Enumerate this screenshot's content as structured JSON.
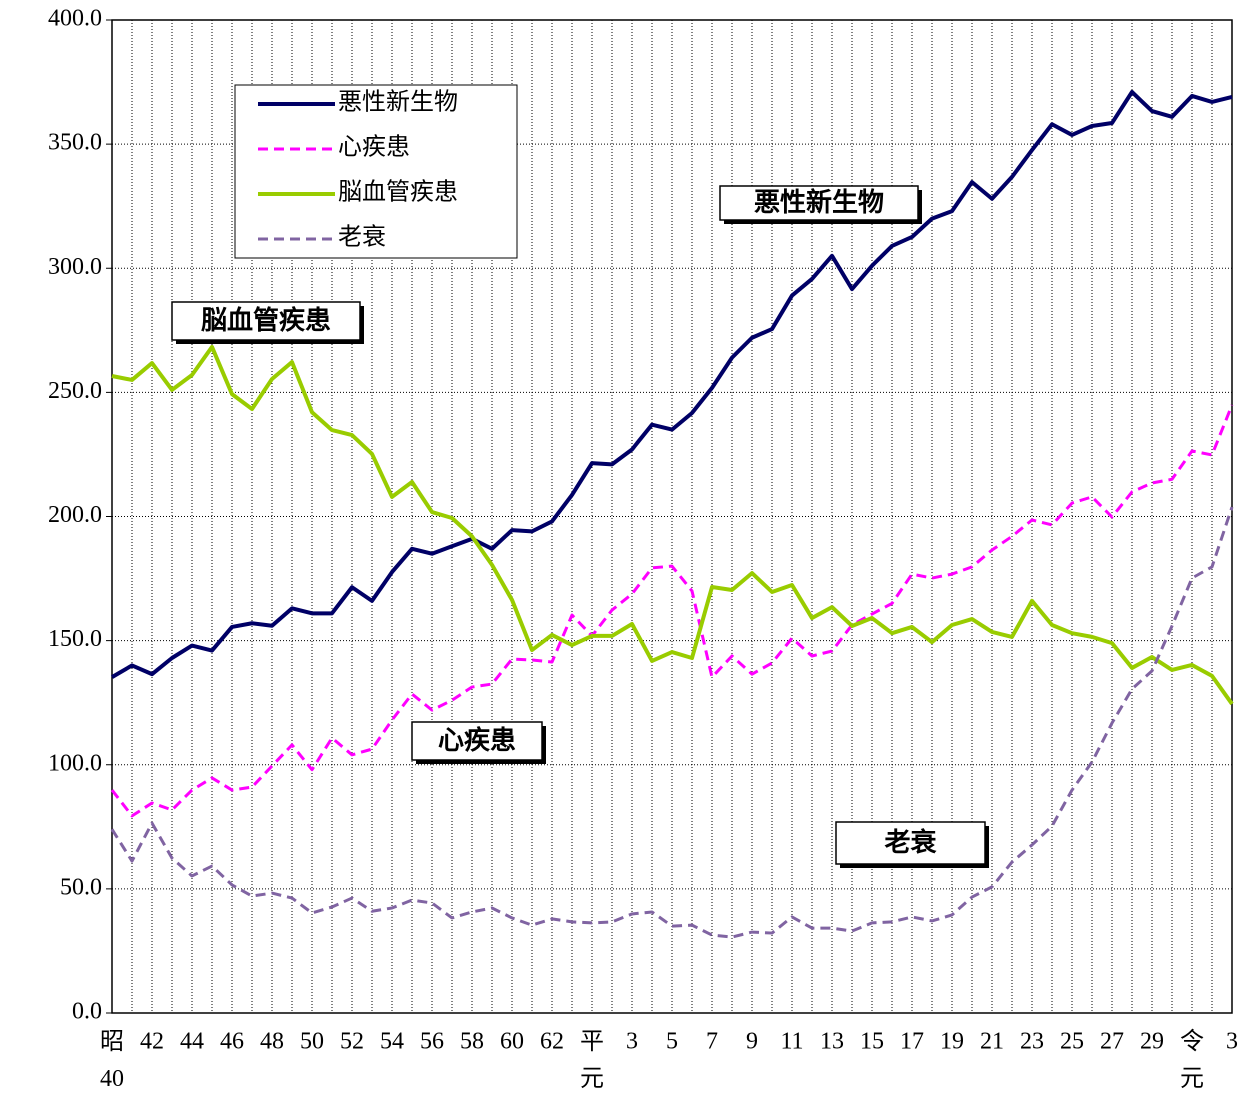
{
  "chart_data": {
    "type": "line",
    "categories": [
      "昭40",
      null,
      "42",
      null,
      "44",
      null,
      "46",
      null,
      "48",
      null,
      "50",
      null,
      "52",
      null,
      "54",
      null,
      "56",
      null,
      "58",
      null,
      "60",
      null,
      "62",
      null,
      "平元",
      null,
      "3",
      null,
      "5",
      null,
      "7",
      null,
      "9",
      null,
      "11",
      null,
      "13",
      null,
      "15",
      null,
      "17",
      null,
      "19",
      null,
      "21",
      null,
      "23",
      null,
      "25",
      null,
      "27",
      null,
      "29",
      null,
      "令元",
      null,
      "3"
    ],
    "series": [
      {
        "name": "悪性新生物",
        "color": "#000066",
        "dash": false,
        "values": [
          135.3,
          140,
          136.5,
          143,
          148,
          146,
          155.5,
          157,
          156,
          163,
          161,
          161,
          171.5,
          166,
          177.6,
          187,
          185,
          188,
          191,
          187,
          194.5,
          194,
          198,
          208.7,
          221.5,
          221,
          227,
          237,
          235,
          241.7,
          251.8,
          264,
          272,
          275.5,
          289,
          295.7,
          305,
          291.6,
          301,
          309,
          312.6,
          320,
          323,
          334.7,
          328,
          336.8,
          347.6,
          358,
          353.7,
          357.3,
          358.5,
          371,
          363.3,
          361,
          369.4,
          367,
          369
        ]
      },
      {
        "name": "心疾患",
        "color": "#ff00ff",
        "dash": true,
        "values": [
          89.8,
          79.4,
          84.6,
          81.8,
          89.8,
          94.7,
          89.8,
          91,
          99.5,
          108,
          98,
          110.8,
          104,
          106.3,
          118,
          128.5,
          122,
          126,
          131.3,
          132.5,
          142.6,
          142.2,
          141.4,
          160.3,
          151.9,
          162.3,
          168.8,
          179.3,
          180,
          170,
          135.3,
          143.8,
          136.5,
          141,
          151,
          143.8,
          145.8,
          156.3,
          160.7,
          165,
          176.8,
          175.2,
          176.8,
          179.7,
          186.5,
          192,
          198.6,
          196.6,
          205.4,
          207.9,
          199.8,
          209.9,
          213.5,
          215,
          226.4,
          224.8,
          244.9
        ]
      },
      {
        "name": "脳血管疾患",
        "color": "#99cc00",
        "dash": false,
        "values": [
          256.6,
          255,
          261.8,
          251,
          257,
          268.3,
          249.3,
          243.3,
          255.4,
          262.2,
          242,
          234.8,
          232.8,
          225.2,
          207.9,
          213.9,
          201.8,
          199.4,
          192,
          180.5,
          166.4,
          146.2,
          152.3,
          148.2,
          151.9,
          151.9,
          156.7,
          141.8,
          145.4,
          143,
          171.6,
          170.4,
          177.2,
          169.6,
          172.4,
          159.1,
          163.5,
          155.9,
          159.1,
          153,
          155.5,
          149.4,
          156.3,
          158.7,
          153.5,
          151.5,
          166,
          156.3,
          153,
          151.5,
          149,
          139,
          143.4,
          138.2,
          140.2,
          135.8,
          124.5
        ]
      },
      {
        "name": "老衰",
        "color": "#8064a2",
        "dash": true,
        "values": [
          74,
          61.2,
          76.5,
          62.4,
          55.2,
          59.2,
          51.6,
          47.1,
          48.3,
          46.3,
          40.3,
          42.7,
          46.3,
          41,
          42.3,
          45.5,
          44.3,
          38.3,
          40.7,
          42.3,
          38.3,
          35.4,
          37.9,
          36.7,
          36.3,
          36.7,
          39.9,
          40.7,
          35,
          35.4,
          31.4,
          30.6,
          32.6,
          32.2,
          38.7,
          34.2,
          34.2,
          33,
          36.3,
          36.7,
          38.7,
          37.1,
          39.5,
          46.7,
          50.8,
          60.8,
          67.7,
          75.3,
          89.8,
          101.1,
          116.8,
          130.5,
          137.8,
          155.9,
          175.2,
          179.7,
          203.8
        ]
      }
    ],
    "annotations": [
      "悪性新生物",
      "脳血管疾患",
      "心疾患",
      "老衰"
    ],
    "ylim": [
      0,
      400
    ],
    "yticks": [
      {
        "value": 0,
        "label": "0.0"
      },
      {
        "value": 50,
        "label": "50.0"
      },
      {
        "value": 100,
        "label": "100.0"
      },
      {
        "value": 150,
        "label": "150.0"
      },
      {
        "value": 200,
        "label": "200.0"
      },
      {
        "value": 250,
        "label": "250.0"
      },
      {
        "value": 300,
        "label": "300.0"
      },
      {
        "value": 350,
        "label": "350.0"
      },
      {
        "value": 400,
        "label": "400.0"
      }
    ],
    "grid": true,
    "legend": "upper left"
  }
}
